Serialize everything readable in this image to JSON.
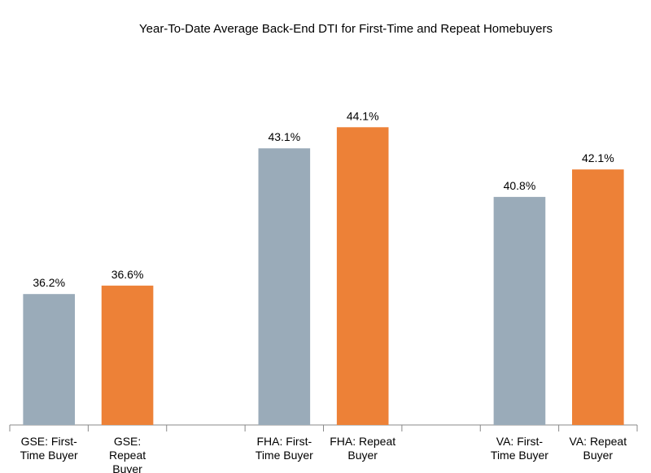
{
  "chart_data": {
    "type": "bar",
    "title": "Year-To-Date Average Back-End DTI for First-Time and Repeat Homebuyers",
    "categories": [
      "GSE: First-Time Buyer",
      "GSE: Repeat Buyer",
      null,
      "FHA: First-Time Buyer",
      "FHA: Repeat Buyer",
      null,
      "VA: First-Time Buyer",
      "VA: Repeat Buyer"
    ],
    "values": [
      36.2,
      36.6,
      null,
      43.1,
      44.1,
      null,
      40.8,
      42.1
    ],
    "value_labels": [
      "36.2%",
      "36.6%",
      null,
      "43.1%",
      "44.1%",
      null,
      "40.8%",
      "42.1%"
    ],
    "colors": [
      "#9aabb9",
      "#ed8137",
      null,
      "#9aabb9",
      "#ed8137",
      null,
      "#9aabb9",
      "#ed8137"
    ],
    "ylim": [
      30,
      46
    ]
  }
}
